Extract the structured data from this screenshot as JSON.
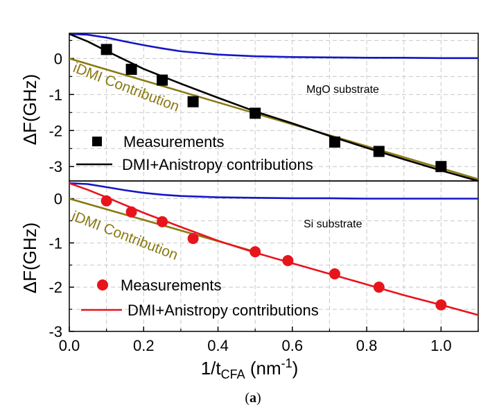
{
  "chart_data": [
    {
      "type": "line",
      "panel": "top",
      "ylabel": "ΔF(GHz)",
      "xlim": [
        0.0,
        1.1
      ],
      "ylim": [
        -3.4,
        0.7
      ],
      "yticks": [
        0,
        -1,
        -2,
        -3
      ],
      "annotation": "MgO substrate",
      "series": [
        {
          "name": "Measurements",
          "kind": "scatter",
          "marker": "square",
          "color": "#000000",
          "x": [
            0.1,
            0.167,
            0.25,
            0.333,
            0.5,
            0.714,
            0.833,
            1.0
          ],
          "y": [
            0.25,
            -0.3,
            -0.6,
            -1.2,
            -1.52,
            -2.32,
            -2.58,
            -3.0
          ]
        },
        {
          "name": "DMI+Anistropy contributions",
          "kind": "line",
          "color": "#000000",
          "x": [
            0.0,
            0.05,
            0.1,
            0.2,
            0.3,
            0.4,
            0.5,
            0.6,
            0.7,
            0.8,
            0.9,
            1.0,
            1.1
          ],
          "y": [
            0.68,
            0.47,
            0.21,
            -0.29,
            -0.7,
            -1.09,
            -1.47,
            -1.8,
            -2.15,
            -2.48,
            -2.8,
            -3.11,
            -3.4
          ]
        },
        {
          "name": "iDMI Contribution",
          "kind": "line",
          "color": "#8a7a14",
          "x": [
            0.0,
            1.1
          ],
          "y": [
            0.0,
            -3.35
          ]
        },
        {
          "kind": "line",
          "color": "#1515c8",
          "x": [
            0.0,
            0.05,
            0.1,
            0.15,
            0.2,
            0.25,
            0.3,
            0.4,
            0.5,
            0.6,
            0.7,
            0.8,
            0.9,
            1.0,
            1.1
          ],
          "y": [
            0.68,
            0.66,
            0.58,
            0.47,
            0.37,
            0.28,
            0.2,
            0.11,
            0.06,
            0.04,
            0.03,
            0.02,
            0.02,
            0.01,
            0.01
          ]
        }
      ]
    },
    {
      "type": "line",
      "panel": "bottom",
      "ylabel": "ΔF(GHz)",
      "xlabel_main": "1/t",
      "xlabel_sub": "CFA",
      "xlabel_unit_pre": " (nm",
      "xlabel_unit_sup": "-1",
      "xlabel_unit_post": ")",
      "xlim": [
        0.0,
        1.1
      ],
      "ylim": [
        -3.0,
        0.4
      ],
      "yticks": [
        0,
        -1,
        -2,
        -3
      ],
      "xticks": [
        "0.0",
        "0.2",
        "0.4",
        "0.6",
        "0.8",
        "1.0"
      ],
      "xtick_values": [
        0.0,
        0.2,
        0.4,
        0.6,
        0.8,
        1.0
      ],
      "annotation": "Si substrate",
      "series": [
        {
          "name": "Measurements",
          "kind": "scatter",
          "marker": "circle",
          "color": "#e8141c",
          "x": [
            0.1,
            0.167,
            0.25,
            0.333,
            0.5,
            0.588,
            0.714,
            0.833,
            1.0
          ],
          "y": [
            -0.05,
            -0.3,
            -0.52,
            -0.9,
            -1.2,
            -1.4,
            -1.7,
            -2.0,
            -2.4
          ]
        },
        {
          "name": "DMI+Anistropy contributions",
          "kind": "line",
          "color": "#e8141c",
          "x": [
            0.0,
            0.05,
            0.1,
            0.2,
            0.3,
            0.4,
            0.5,
            0.6,
            0.7,
            0.8,
            0.9,
            1.0,
            1.1
          ],
          "y": [
            0.35,
            0.2,
            0.03,
            -0.32,
            -0.64,
            -0.95,
            -1.22,
            -1.46,
            -1.7,
            -1.94,
            -2.18,
            -2.4,
            -2.63
          ]
        },
        {
          "name": "iDMI Contribution",
          "kind": "line",
          "color": "#8a7a14",
          "x": [
            0.0,
            0.5
          ],
          "y": [
            0.0,
            -1.2
          ]
        },
        {
          "kind": "line",
          "color": "#1515c8",
          "x": [
            0.0,
            0.05,
            0.1,
            0.15,
            0.2,
            0.25,
            0.3,
            0.4,
            0.5,
            0.6,
            0.7,
            0.8,
            0.9,
            1.0,
            1.1
          ],
          "y": [
            0.35,
            0.33,
            0.26,
            0.19,
            0.13,
            0.09,
            0.06,
            0.03,
            0.02,
            0.01,
            0.01,
            0.0,
            0.0,
            0.0,
            0.0
          ]
        }
      ]
    }
  ],
  "labels": {
    "top_legend_measurements": "Measurements",
    "top_legend_fit": "DMI+Anistropy contributions",
    "bottom_legend_measurements": "Measurements",
    "bottom_legend_fit": "DMI+Anistropy contributions",
    "idmi_top": "iDMI Contribution",
    "idmi_bottom": "iDMI Contribution",
    "caption_pre": "(",
    "caption_letter": "a",
    "caption_post": ")"
  }
}
